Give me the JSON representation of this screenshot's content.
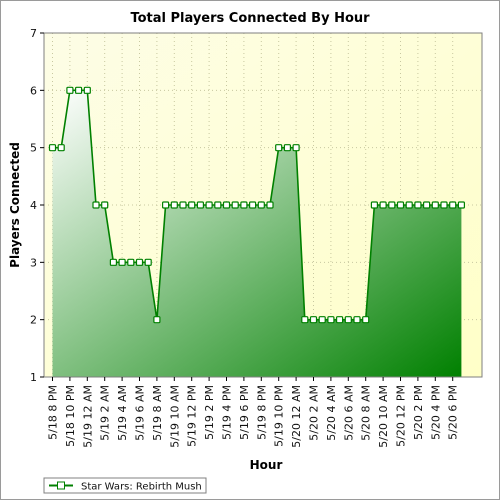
{
  "chart_data": {
    "type": "area",
    "title": "Total Players Connected By Hour",
    "xlabel": "Hour",
    "ylabel": "Players Connected",
    "ylim": [
      1,
      7
    ],
    "yticks": [
      "1",
      "2",
      "3",
      "4",
      "5",
      "6",
      "7"
    ],
    "grid": true,
    "legend_position": "bottom-left",
    "x_tick_labels": [
      "5/18 8 PM",
      "5/18 10 PM",
      "5/19 12 AM",
      "5/19 2 AM",
      "5/19 4 AM",
      "5/19 6 AM",
      "5/19 8 AM",
      "5/19 10 AM",
      "5/19 12 PM",
      "5/19 2 PM",
      "5/19 4 PM",
      "5/19 6 PM",
      "5/19 8 PM",
      "5/19 10 PM",
      "5/20 12 AM",
      "5/20 2 AM",
      "5/20 4 AM",
      "5/20 6 AM",
      "5/20 8 AM",
      "5/20 10 AM",
      "5/20 12 PM",
      "5/20 2 PM",
      "5/20 4 PM",
      "5/20 6 PM"
    ],
    "series": [
      {
        "name": "Star Wars: Rebirth Mush",
        "color": "#008000",
        "x": [
          "5/18 8 PM",
          "5/18 9 PM",
          "5/18 10 PM",
          "5/18 11 PM",
          "5/19 12 AM",
          "5/19 1 AM",
          "5/19 2 AM",
          "5/19 3 AM",
          "5/19 4 AM",
          "5/19 5 AM",
          "5/19 6 AM",
          "5/19 7 AM",
          "5/19 8 AM",
          "5/19 9 AM",
          "5/19 10 AM",
          "5/19 11 AM",
          "5/19 12 PM",
          "5/19 1 PM",
          "5/19 2 PM",
          "5/19 3 PM",
          "5/19 4 PM",
          "5/19 5 PM",
          "5/19 6 PM",
          "5/19 7 PM",
          "5/19 8 PM",
          "5/19 9 PM",
          "5/19 10 PM",
          "5/19 11 PM",
          "5/20 12 AM",
          "5/20 1 AM",
          "5/20 2 AM",
          "5/20 3 AM",
          "5/20 4 AM",
          "5/20 5 AM",
          "5/20 6 AM",
          "5/20 7 AM",
          "5/20 8 AM",
          "5/20 9 AM",
          "5/20 10 AM",
          "5/20 11 AM",
          "5/20 12 PM",
          "5/20 1 PM",
          "5/20 2 PM",
          "5/20 3 PM",
          "5/20 4 PM",
          "5/20 5 PM",
          "5/20 6 PM",
          "5/20 7 PM"
        ],
        "values": [
          5,
          5,
          6,
          6,
          6,
          4,
          4,
          3,
          3,
          3,
          3,
          3,
          2,
          4,
          4,
          4,
          4,
          4,
          4,
          4,
          4,
          4,
          4,
          4,
          4,
          4,
          5,
          5,
          5,
          2,
          2,
          2,
          2,
          2,
          2,
          2,
          2,
          4,
          4,
          4,
          4,
          4,
          4,
          4,
          4,
          4,
          4,
          4
        ]
      }
    ],
    "colors": {
      "plot_bg_top": "#fdfde6",
      "plot_bg_bottom": "#ffffc8",
      "fill_light": "#ffffff",
      "fill_dark": "#008000",
      "line": "#008000",
      "marker_fill": "#ffffff",
      "grid": "#c8c8a0"
    }
  }
}
